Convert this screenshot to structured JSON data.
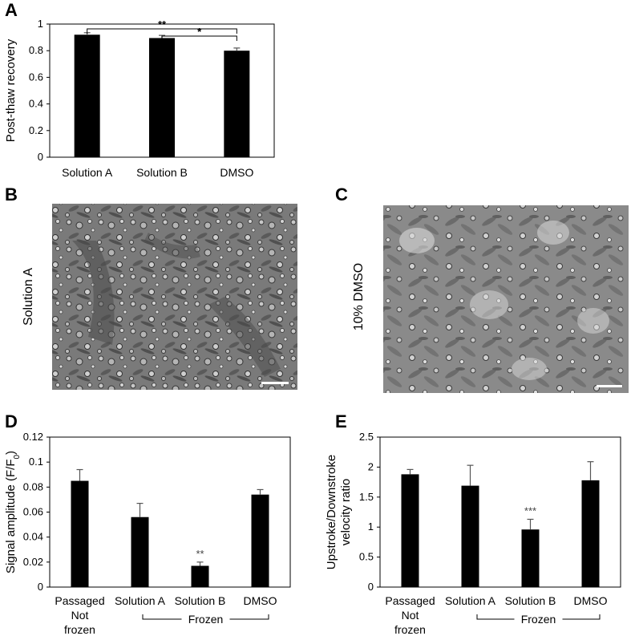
{
  "panels": {
    "a": "A",
    "b": "B",
    "c": "C",
    "d": "D",
    "e": "E"
  },
  "micrographs": {
    "b_label": "Solution A",
    "c_label": "10% DMSO"
  },
  "chart_data": [
    {
      "id": "A",
      "type": "bar",
      "categories": [
        "Solution A",
        "Solution B",
        "DMSO"
      ],
      "values": [
        0.92,
        0.895,
        0.8
      ],
      "errors": [
        0.015,
        0.02,
        0.02
      ],
      "ylabel": "Post-thaw recovery",
      "ylim": [
        0,
        1
      ],
      "yticks": [
        "0",
        "0.2",
        "0.4",
        "0.6",
        "0.8",
        "1"
      ],
      "significance": [
        {
          "from": 0,
          "to": 2,
          "label": "**"
        },
        {
          "from": 1,
          "to": 2,
          "label": "*"
        }
      ]
    },
    {
      "id": "D",
      "type": "bar",
      "categories": [
        "Passaged",
        "Solution A",
        "Solution B",
        "DMSO"
      ],
      "category_sublines": [
        [
          "Not",
          "frozen"
        ],
        [],
        [],
        []
      ],
      "values": [
        0.085,
        0.056,
        0.017,
        0.074
      ],
      "errors": [
        0.009,
        0.011,
        0.003,
        0.004
      ],
      "ylabel": "Signal amplitude (F/F0)",
      "ylim": [
        0,
        0.12
      ],
      "yticks": [
        "0",
        "0.02",
        "0.04",
        "0.06",
        "0.08",
        "0.1",
        "0.12"
      ],
      "bar_annotations": [
        "",
        "",
        "**",
        ""
      ],
      "group_label": "Frozen"
    },
    {
      "id": "E",
      "type": "bar",
      "categories": [
        "Passaged",
        "Solution A",
        "Solution B",
        "DMSO"
      ],
      "category_sublines": [
        [
          "Not",
          "frozen"
        ],
        [],
        [],
        []
      ],
      "values": [
        1.88,
        1.69,
        0.96,
        1.78
      ],
      "errors": [
        0.08,
        0.34,
        0.17,
        0.31
      ],
      "ylabel_lines": [
        "Upstroke/Downstroke",
        "velocity ratio"
      ],
      "ylim": [
        0,
        2.5
      ],
      "yticks": [
        "0",
        "0.5",
        "1",
        "1.5",
        "2",
        "2.5"
      ],
      "bar_annotations": [
        "",
        "",
        "***",
        ""
      ],
      "group_label": "Frozen"
    }
  ]
}
